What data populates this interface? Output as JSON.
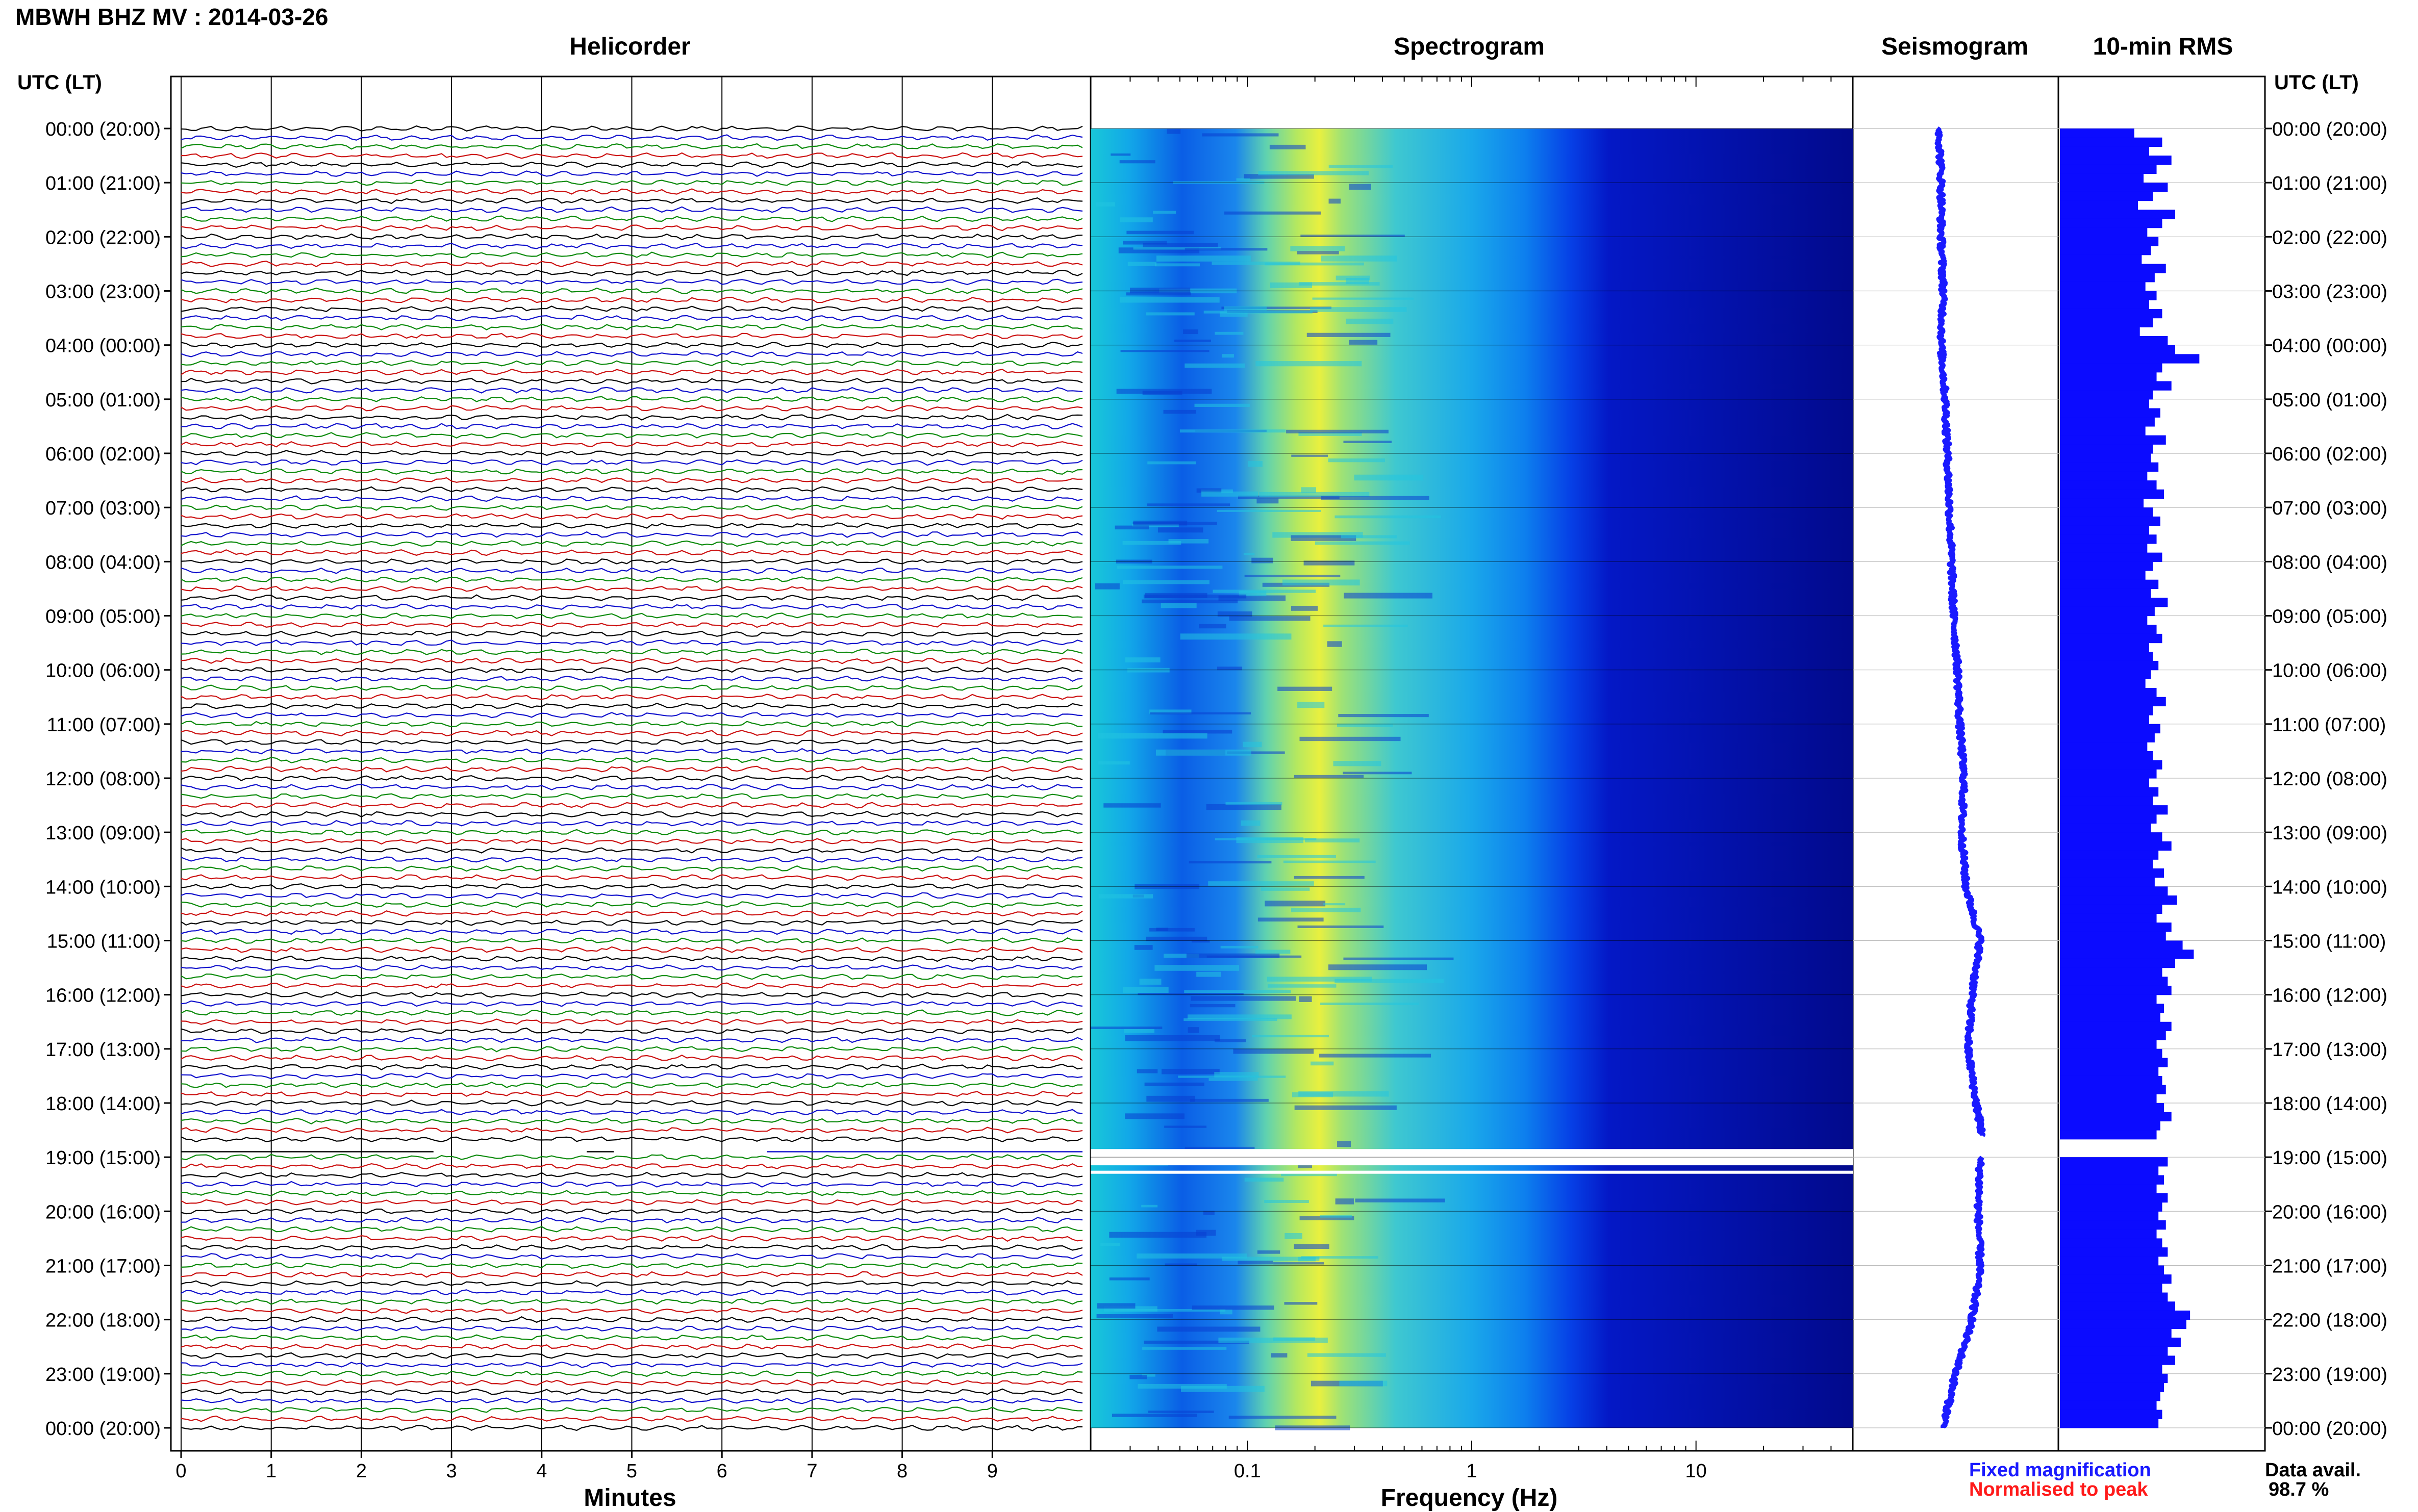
{
  "header": {
    "title": "MBWH BHZ MV : 2014-03-26"
  },
  "panels": {
    "helicorder": "Helicorder",
    "spectrogram": "Spectrogram",
    "seismogram": "Seismogram",
    "rms": "10-min RMS"
  },
  "axis_head": {
    "left": "UTC (LT)",
    "right": "UTC (LT)"
  },
  "legend": {
    "fixed": "Fixed magnification",
    "normalised": "Normalised to peak",
    "avail_label": "Data avail.",
    "avail_value": "98.7 %"
  },
  "colors": {
    "fixed": "#1a1aff",
    "normalised": "#ff1a1a",
    "trace_cycle": [
      "#000000",
      "#1010cc",
      "#0a8a0a",
      "#cc1010"
    ],
    "seismo": "#1a1aff",
    "rms": "#0b0bff"
  },
  "chart_data": [
    {
      "type": "line",
      "title": "Helicorder",
      "xlabel": "Minutes",
      "xlim": [
        0,
        10
      ],
      "xticks": [
        "0",
        "1",
        "2",
        "3",
        "4",
        "5",
        "6",
        "7",
        "8",
        "9"
      ],
      "time_labels": [
        "00:00 (20:00)",
        "01:00 (21:00)",
        "02:00 (22:00)",
        "03:00 (23:00)",
        "04:00 (00:00)",
        "05:00 (01:00)",
        "06:00 (02:00)",
        "07:00 (03:00)",
        "08:00 (04:00)",
        "09:00 (05:00)",
        "10:00 (06:00)",
        "11:00 (07:00)",
        "12:00 (08:00)",
        "13:00 (09:00)",
        "14:00 (10:00)",
        "15:00 (11:00)",
        "16:00 (12:00)",
        "17:00 (13:00)",
        "18:00 (14:00)",
        "19:00 (15:00)",
        "20:00 (16:00)",
        "21:00 (17:00)",
        "22:00 (18:00)",
        "23:00 (19:00)",
        "00:00 (20:00)"
      ],
      "rows_per_hour": 6,
      "gap_hour": [
        18.8,
        19.0
      ]
    },
    {
      "type": "heatmap",
      "title": "Spectrogram",
      "xlabel": "Frequency (Hz)",
      "xscale": "log",
      "xlim": [
        0.02,
        50
      ],
      "xticks": [
        "0.1",
        "1",
        "10"
      ],
      "gap_hour": [
        18.85,
        19.15
      ]
    },
    {
      "type": "line",
      "title": "Seismogram",
      "y_hours": [
        0,
        1,
        2,
        3,
        4,
        5,
        6,
        7,
        8,
        9,
        10,
        11,
        12,
        13,
        14,
        15,
        16,
        17,
        18,
        18.6,
        19,
        20,
        21,
        22,
        23,
        24
      ],
      "x_rel": [
        0.42,
        0.43,
        0.43,
        0.44,
        0.43,
        0.45,
        0.46,
        0.47,
        0.48,
        0.49,
        0.51,
        0.52,
        0.54,
        0.53,
        0.55,
        0.62,
        0.58,
        0.56,
        0.6,
        0.63,
        0.62,
        0.61,
        0.62,
        0.58,
        0.5,
        0.44
      ],
      "gap_hour": [
        18.6,
        19.0
      ]
    },
    {
      "type": "bar",
      "title": "10-min RMS",
      "orientation": "horizontal",
      "bins": 144,
      "rel_values": [
        0.4,
        0.55,
        0.48,
        0.6,
        0.52,
        0.45,
        0.58,
        0.5,
        0.42,
        0.62,
        0.55,
        0.47,
        0.53,
        0.49,
        0.44,
        0.57,
        0.51,
        0.46,
        0.52,
        0.48,
        0.55,
        0.5,
        0.43,
        0.58,
        0.62,
        0.75,
        0.55,
        0.52,
        0.6,
        0.5,
        0.48,
        0.54,
        0.51,
        0.46,
        0.57,
        0.5,
        0.49,
        0.53,
        0.47,
        0.52,
        0.56,
        0.45,
        0.5,
        0.54,
        0.48,
        0.52,
        0.47,
        0.55,
        0.5,
        0.46,
        0.53,
        0.49,
        0.58,
        0.51,
        0.47,
        0.52,
        0.55,
        0.48,
        0.5,
        0.53,
        0.49,
        0.46,
        0.52,
        0.57,
        0.5,
        0.48,
        0.54,
        0.51,
        0.47,
        0.5,
        0.55,
        0.52,
        0.48,
        0.53,
        0.5,
        0.58,
        0.52,
        0.49,
        0.55,
        0.6,
        0.53,
        0.5,
        0.56,
        0.51,
        0.58,
        0.63,
        0.55,
        0.52,
        0.6,
        0.57,
        0.66,
        0.72,
        0.62,
        0.55,
        0.58,
        0.6,
        0.52,
        0.56,
        0.54,
        0.6,
        0.57,
        0.52,
        0.55,
        0.58,
        0.53,
        0.55,
        0.57,
        0.52,
        0.56,
        0.6,
        0.54,
        0.52,
        0.0,
        0.0,
        0.58,
        0.53,
        0.56,
        0.52,
        0.58,
        0.55,
        0.53,
        0.57,
        0.52,
        0.55,
        0.58,
        0.53,
        0.56,
        0.6,
        0.55,
        0.58,
        0.62,
        0.7,
        0.68,
        0.6,
        0.65,
        0.58,
        0.62,
        0.55,
        0.58,
        0.56,
        0.54,
        0.52,
        0.55,
        0.53
      ]
    }
  ]
}
